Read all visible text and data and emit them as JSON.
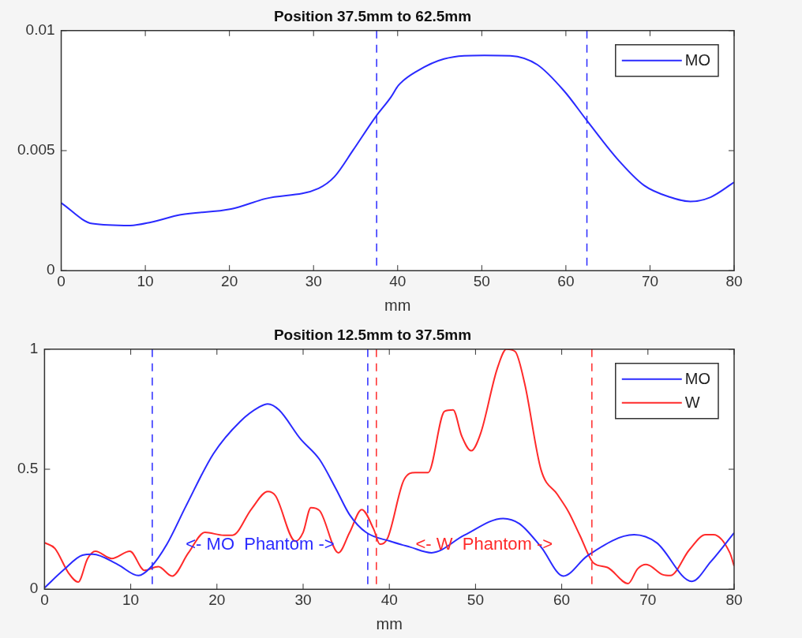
{
  "chart_data": [
    {
      "type": "line",
      "title": "Position 37.5mm to 62.5mm",
      "xlabel": "mm",
      "xlim": [
        0,
        80
      ],
      "xticks": [
        0,
        10,
        20,
        30,
        40,
        50,
        60,
        70,
        80
      ],
      "ylim": [
        0,
        0.01
      ],
      "yticks": [
        0,
        0.005,
        0.01
      ],
      "grid": false,
      "legend": "top right",
      "line_style": "solid",
      "marker": "none",
      "series": [
        {
          "name": "MO",
          "color": "#2a2aff",
          "x": [
            0,
            3.7,
            8.2,
            10.7,
            14.2,
            20.2,
            24.3,
            30.6,
            32.5,
            34.7,
            37.3,
            39.2,
            40.1,
            42.4,
            45.5,
            50.3,
            53.4,
            56.6,
            59.8,
            62.5,
            66.1,
            69.3,
            72.4,
            74.8,
            77.2,
            80
          ],
          "values": [
            0.00282,
            0.00196,
            0.00188,
            0.00202,
            0.00233,
            0.00257,
            0.003,
            0.00343,
            0.00392,
            0.00502,
            0.00637,
            0.00723,
            0.00772,
            0.00833,
            0.00882,
            0.00897,
            0.00895,
            0.00858,
            0.00748,
            0.00625,
            0.00466,
            0.00355,
            0.00306,
            0.00288,
            0.00306,
            0.00368
          ]
        }
      ],
      "ref_lines": [
        {
          "axis": "x",
          "value": 37.5,
          "color": "#2a2aff",
          "line_style": "dashed"
        },
        {
          "axis": "x",
          "value": 62.5,
          "color": "#2a2aff",
          "line_style": "dashed"
        }
      ]
    },
    {
      "type": "line",
      "title": "Position 12.5mm to 37.5mm",
      "xlabel": "mm",
      "xlim": [
        0,
        80
      ],
      "xticks": [
        0,
        10,
        20,
        30,
        40,
        50,
        60,
        70,
        80
      ],
      "ylim": [
        0,
        1
      ],
      "yticks": [
        0,
        0.5,
        1
      ],
      "grid": false,
      "legend": "top right",
      "line_style": "solid",
      "marker": "none",
      "series": [
        {
          "name": "MO",
          "color": "#2a2aff",
          "x": [
            0,
            2.2,
            4.4,
            5.6,
            8.5,
            10.9,
            12.3,
            14.2,
            16.4,
            19.6,
            22.7,
            24.9,
            25.9,
            27.2,
            29.7,
            31.9,
            33.8,
            35.4,
            37.3,
            40.1,
            42.4,
            44.9,
            48.7,
            53.2,
            55.1,
            57.6,
            60.2,
            63.0,
            68.4,
            71.0,
            75.1,
            77.3,
            80
          ],
          "values": [
            0.006,
            0.08,
            0.142,
            0.146,
            0.103,
            0.057,
            0.091,
            0.188,
            0.346,
            0.565,
            0.699,
            0.759,
            0.772,
            0.747,
            0.626,
            0.541,
            0.419,
            0.31,
            0.237,
            0.2,
            0.176,
            0.152,
            0.225,
            0.295,
            0.273,
            0.176,
            0.055,
            0.14,
            0.227,
            0.194,
            0.033,
            0.115,
            0.235
          ]
        },
        {
          "name": "W",
          "color": "#ff2a2a",
          "x": [
            0,
            1.2,
            2.8,
            3.9,
            5,
            5.9,
            7.8,
            9.9,
            11.6,
            13.2,
            14.8,
            16.7,
            18.6,
            20.8,
            21.8,
            24,
            25.9,
            26.8,
            29.1,
            30,
            30.9,
            31.9,
            34.1,
            35.4,
            36.8,
            38.2,
            38.9,
            39.8,
            41.7,
            43.0,
            44.5,
            46.4,
            47.4,
            48.4,
            49.5,
            50.6,
            52.5,
            53.6,
            54.6,
            55.7,
            57.6,
            59.5,
            60.8,
            62.1,
            63.7,
            65.3,
            67.7,
            68.8,
            69.8,
            71.7,
            72.6,
            74.8,
            76.7,
            77.6,
            79.5,
            80
          ],
          "values": [
            0.194,
            0.17,
            0.067,
            0.03,
            0.128,
            0.158,
            0.128,
            0.158,
            0.079,
            0.094,
            0.055,
            0.152,
            0.237,
            0.225,
            0.225,
            0.334,
            0.407,
            0.389,
            0.2,
            0.237,
            0.34,
            0.328,
            0.152,
            0.237,
            0.332,
            0.249,
            0.188,
            0.213,
            0.456,
            0.486,
            0.486,
            0.741,
            0.747,
            0.638,
            0.577,
            0.65,
            0.917,
            1.0,
            0.99,
            0.857,
            0.498,
            0.395,
            0.322,
            0.225,
            0.109,
            0.091,
            0.024,
            0.085,
            0.103,
            0.061,
            0.057,
            0.164,
            0.227,
            0.227,
            0.152,
            0.097
          ]
        }
      ],
      "ref_lines": [
        {
          "axis": "x",
          "value": 12.5,
          "color": "#2a2aff",
          "line_style": "dashed"
        },
        {
          "axis": "x",
          "value": 37.5,
          "color": "#2a2aff",
          "line_style": "dashed"
        },
        {
          "axis": "x",
          "value": 38.5,
          "color": "#ff2a2a",
          "line_style": "dashed"
        },
        {
          "axis": "x",
          "value": 63.5,
          "color": "#ff2a2a",
          "line_style": "dashed"
        }
      ],
      "annotations": [
        "<- MO  Phantom ->",
        "<- W  Phantom ->"
      ]
    }
  ]
}
